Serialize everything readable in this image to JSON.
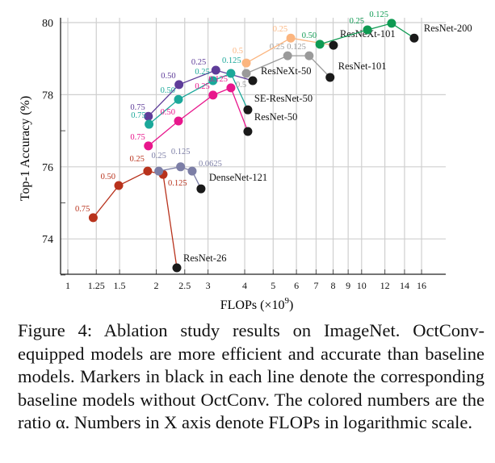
{
  "chart_data": {
    "type": "line",
    "title": "",
    "xlabel": "FLOPs (×10",
    "xlabel_sup": "9",
    "xlabel_close": ")",
    "ylabel": "Top-1 Accuracy (%)",
    "x_scale": "log",
    "xlim": [
      0.9,
      20
    ],
    "ylim": [
      73,
      80
    ],
    "x_ticks": [
      "1",
      "1.25",
      "1.5",
      "2",
      "2.5",
      "3",
      "4",
      "5",
      "6",
      "7",
      "8",
      "9",
      "10",
      "12",
      "14",
      "16"
    ],
    "y_ticks": [
      "74",
      "76",
      "78",
      "80"
    ],
    "grid": true,
    "series": [
      {
        "color": "#5e3c99",
        "points": [
          [
            1.88,
            77.4,
            "0.75"
          ],
          [
            2.39,
            78.28,
            "0.50"
          ],
          [
            3.19,
            78.68,
            "0.25"
          ]
        ],
        "baseline": [
          4.26,
          78.39
        ],
        "baseline_name": "ResNeXt-50"
      },
      {
        "color": "#1ba89a",
        "points": [
          [
            1.89,
            77.18,
            "0.75"
          ],
          [
            2.38,
            77.87,
            "0.50"
          ],
          [
            3.12,
            78.39,
            "0.25"
          ],
          [
            3.59,
            78.59,
            "0.125"
          ]
        ],
        "baseline": [
          4.1,
          77.58
        ],
        "baseline_name": "SE-ResNet-50"
      },
      {
        "color": "#e8168c",
        "points": [
          [
            1.88,
            76.58,
            "0.75"
          ],
          [
            2.38,
            77.27,
            "0.50"
          ],
          [
            3.12,
            77.99,
            "0.25"
          ],
          [
            3.59,
            78.19,
            "0.125"
          ]
        ],
        "baseline": [
          4.1,
          76.98
        ],
        "baseline_name": "ResNet-50"
      },
      {
        "color": "#9a9a9a",
        "points": [
          [
            4.05,
            78.59,
            "0.5"
          ],
          [
            5.6,
            79.08,
            "0.25"
          ],
          [
            6.63,
            79.08,
            "0.125"
          ]
        ],
        "baseline": [
          7.81,
          78.48
        ],
        "baseline_name": "ResNet-101"
      },
      {
        "color": "#fbb57f",
        "points": [
          [
            4.05,
            78.88,
            "0.5"
          ],
          [
            5.74,
            79.57,
            "0.25"
          ]
        ],
        "baseline": [
          8.02,
          79.37
        ],
        "baseline_name": "ResNeXt-101"
      },
      {
        "color": "#0e9a52",
        "points": [
          [
            7.21,
            79.4,
            "0.50"
          ],
          [
            10.47,
            79.8,
            "0.25"
          ],
          [
            12.65,
            79.98,
            "0.125"
          ]
        ],
        "baseline": [
          15.1,
          79.57
        ],
        "baseline_name": "ResNet-200"
      },
      {
        "color": "#b8321c",
        "points": [
          [
            1.22,
            74.59,
            "0.75"
          ],
          [
            1.49,
            75.48,
            "0.50"
          ],
          [
            1.87,
            75.88,
            "0.25"
          ],
          [
            2.11,
            75.79,
            "0.125"
          ]
        ],
        "baseline": [
          2.35,
          73.2
        ],
        "baseline_name": "ResNet-26"
      },
      {
        "color": "#7c7ea6",
        "points": [
          [
            2.04,
            75.88,
            "0.25"
          ],
          [
            2.42,
            76.0,
            "0.125"
          ],
          [
            2.65,
            75.88,
            "0.0625"
          ]
        ],
        "baseline": [
          2.84,
          75.39
        ],
        "baseline_name": "DenseNet-121"
      }
    ]
  },
  "caption": "Figure 4: Ablation study results on ImageNet. OctConv-equipped models are more efficient and accurate than baseline models. Markers in black in each line denote the corresponding baseline models without OctConv. The colored numbers are the ratio α. Numbers in X axis denote FLOPs in logarithmic scale."
}
